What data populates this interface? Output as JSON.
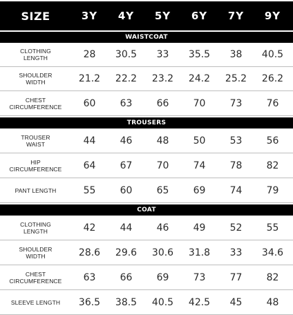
{
  "header": {
    "label": "SIZE",
    "sizes": [
      "3Y",
      "4Y",
      "5Y",
      "6Y",
      "7Y",
      "9Y"
    ]
  },
  "sections": [
    {
      "title": "WAISTCOAT",
      "rows": [
        {
          "label_lines": [
            "CLOTHING",
            "LENGTH"
          ],
          "values": [
            "28",
            "30.5",
            "33",
            "35.5",
            "38",
            "40.5"
          ]
        },
        {
          "label_lines": [
            "SHOULDER",
            "WIDTH"
          ],
          "values": [
            "21.2",
            "22.2",
            "23.2",
            "24.2",
            "25.2",
            "26.2"
          ]
        },
        {
          "label_lines": [
            "CHEST",
            "CIRCUMFERENCE"
          ],
          "values": [
            "60",
            "63",
            "66",
            "70",
            "73",
            "76"
          ]
        }
      ]
    },
    {
      "title": "TROUSERS",
      "rows": [
        {
          "label_lines": [
            "TROUSER",
            "WAIST"
          ],
          "values": [
            "44",
            "46",
            "48",
            "50",
            "53",
            "56"
          ]
        },
        {
          "label_lines": [
            "HIP",
            "CIRCUMFERENCE"
          ],
          "values": [
            "64",
            "67",
            "70",
            "74",
            "78",
            "82"
          ]
        },
        {
          "label_lines": [
            "PANT LENGTH"
          ],
          "values": [
            "55",
            "60",
            "65",
            "69",
            "74",
            "79"
          ]
        }
      ]
    },
    {
      "title": "COAT",
      "rows": [
        {
          "label_lines": [
            "CLOTHING",
            "LENGTH"
          ],
          "values": [
            "42",
            "44",
            "46",
            "49",
            "52",
            "55"
          ]
        },
        {
          "label_lines": [
            "SHOULDER",
            "WIDTH"
          ],
          "values": [
            "28.6",
            "29.6",
            "30.6",
            "31.8",
            "33",
            "34.6"
          ]
        },
        {
          "label_lines": [
            "CHEST",
            "CIRCUMFERENCE"
          ],
          "values": [
            "63",
            "66",
            "69",
            "73",
            "77",
            "82"
          ]
        },
        {
          "label_lines": [
            "SLEEVE LENGTH"
          ],
          "values": [
            "36.5",
            "38.5",
            "40.5",
            "42.5",
            "45",
            "48"
          ]
        }
      ]
    }
  ]
}
